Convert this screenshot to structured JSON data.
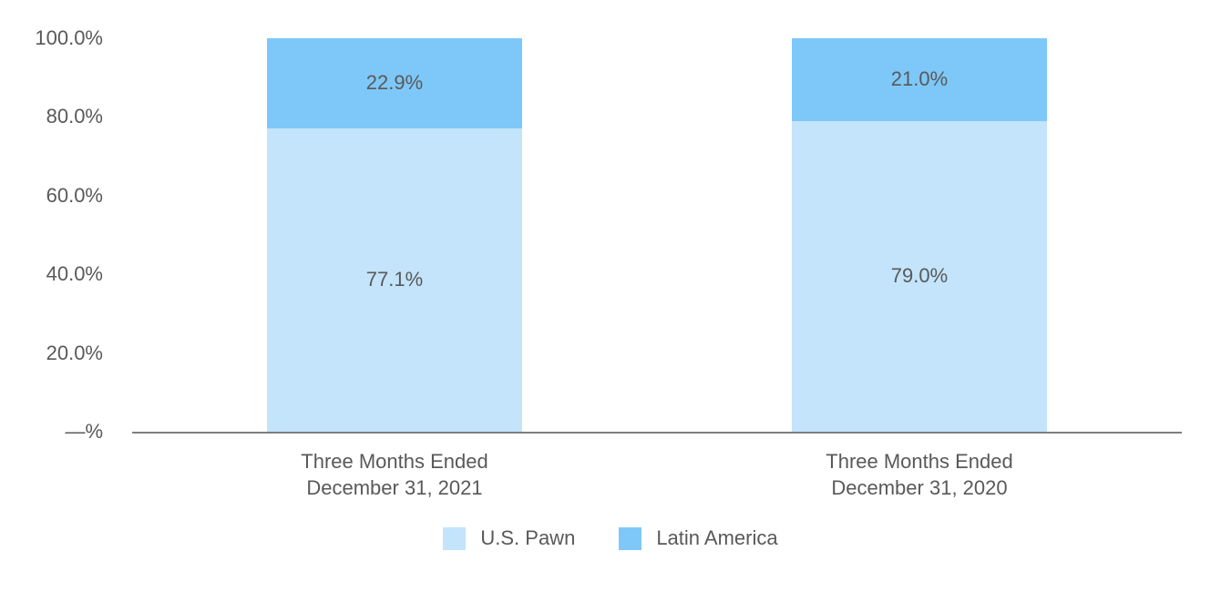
{
  "chart_data": {
    "type": "bar",
    "stacked": true,
    "orientation": "vertical",
    "title": "",
    "xlabel": "",
    "ylabel": "",
    "ylim": [
      0,
      100
    ],
    "grid": false,
    "categories": [
      {
        "line1": "Three Months Ended",
        "line2": "December 31, 2021"
      },
      {
        "line1": "Three Months Ended",
        "line2": "December 31, 2020"
      }
    ],
    "series": [
      {
        "name": "U.S. Pawn",
        "values": [
          77.1,
          79.0
        ],
        "data_labels": [
          "77.1%",
          "79.0%"
        ],
        "color": "#c3e4fb"
      },
      {
        "name": "Latin America",
        "values": [
          22.9,
          21.0
        ],
        "data_labels": [
          "22.9%",
          "21.0%"
        ],
        "color": "#7ec8f9"
      }
    ],
    "y_axis": {
      "tick_values": [
        0,
        20,
        40,
        60,
        80,
        100
      ],
      "tick_labels": [
        "—%",
        "20.0%",
        "40.0%",
        "60.0%",
        "80.0%",
        "100.0%"
      ]
    },
    "legend": {
      "position": "bottom",
      "entries": [
        "U.S. Pawn",
        "Latin America"
      ]
    },
    "colors": {
      "us_pawn": "#c3e4fb",
      "latin_america": "#7ec8f9",
      "label_text": "#595959",
      "axis_line": "#7f7f7f",
      "background": "#ffffff"
    }
  }
}
